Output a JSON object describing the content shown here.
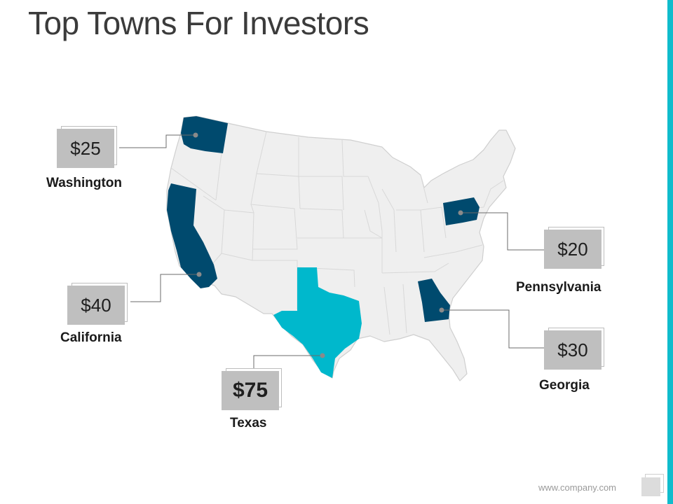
{
  "slide": {
    "title": "Top Towns For Investors",
    "footer_url": "www.company.com"
  },
  "colors": {
    "accent": "#10bccc",
    "highlight_state": "#00b8cc",
    "state_dark": "#004a6e",
    "state_base": "#efefef",
    "price_box": "#bfbfbf"
  },
  "states": [
    {
      "id": "washington",
      "label": "Washington",
      "price": "$25"
    },
    {
      "id": "california",
      "label": "California",
      "price": "$40"
    },
    {
      "id": "texas",
      "label": "Texas",
      "price": "$75"
    },
    {
      "id": "pennsylvania",
      "label": "Pennsylvania",
      "price": "$20"
    },
    {
      "id": "georgia",
      "label": "Georgia",
      "price": "$30"
    }
  ]
}
